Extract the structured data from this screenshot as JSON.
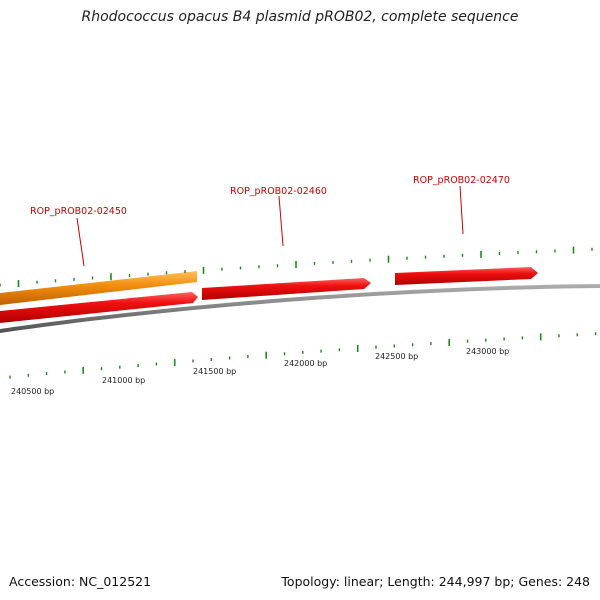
{
  "title": "Rhodococcus opacus B4 plasmid pROB02, complete sequence",
  "footer": {
    "accession": "Accession: NC_012521",
    "summary": "Topology: linear; Length: 244,997 bp; Genes: 248"
  },
  "colors": {
    "gene_red": "#e60000",
    "gene_orange": "#ef8a00",
    "backbone": "#777777",
    "tick_green": "#1a8a1a",
    "label_red": "#cc0000",
    "label_dark": "#222222"
  },
  "genes": [
    {
      "label": "ROP_pROB02-02450"
    },
    {
      "label": "ROP_pROB02-02460"
    },
    {
      "label": "ROP_pROB02-02470"
    }
  ],
  "scale_labels": [
    "240500 bp",
    "241000 bp",
    "241500 bp",
    "242000 bp",
    "242500 bp",
    "243000 bp"
  ]
}
